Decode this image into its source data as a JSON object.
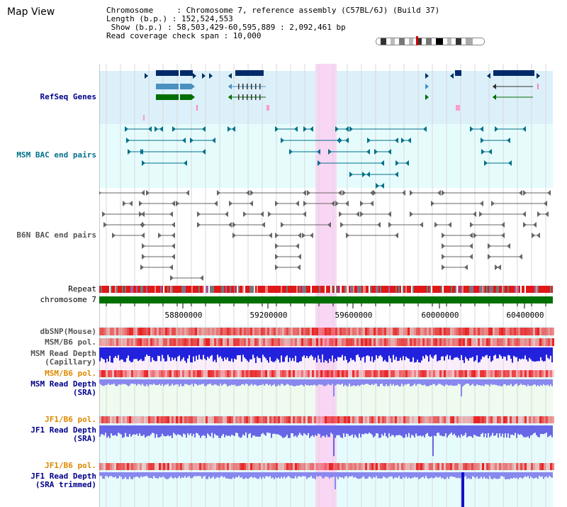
{
  "title": "Map View",
  "info": {
    "lines": [
      "Chromosome     : Chromosome 7, reference assembly (C57BL/6J) (Build 37)",
      "Length (b.p.) : 152,524,553",
      " Show (b.p.) : 58,503,429-60,595,889 : 2,092,461 bp",
      "Read coverage check span : 10,000"
    ]
  },
  "tracks": {
    "refseq": "RefSeq Genes",
    "msm_bac": "MSM BAC end pairs",
    "b6n_bac": "B6N BAC end pairs",
    "repeat": "Repeat",
    "chromosome": "chromosome 7",
    "dbsnp": "dbSNP(Mouse)",
    "msm_b6_pol_1": "MSM/B6 pol.",
    "msm_depth_cap": "MSM Read Depth\n(Capillary)",
    "msm_b6_pol_2": "MSM/B6 pol.",
    "msm_depth_sra": "MSM Read Depth\n(SRA)",
    "jf1_b6_pol_1": "JF1/B6 pol.",
    "jf1_depth_sra": "JF1 Read Depth\n(SRA)",
    "jf1_b6_pol_2": "JF1/B6 pol.",
    "jf1_depth_trim": "JF1 Read Depth\n(SRA trimmed)"
  },
  "axis": {
    "ticks": [
      "58800000",
      "59200000",
      "59600000",
      "60000000",
      "60400000"
    ]
  },
  "colors": {
    "refseq_bg": "#dcf0fa",
    "bac_bg": "#e6fcfc",
    "highlight": "#f9d6f4",
    "chromosome_bar": "#007000",
    "depth_blue": "#2222dd",
    "sra_blue": "#8888ee",
    "pol_red": "#e83030",
    "label_blue": "#00008b",
    "label_teal": "#00708a",
    "label_orange": "#dd8800",
    "label_gray": "#555555"
  }
}
